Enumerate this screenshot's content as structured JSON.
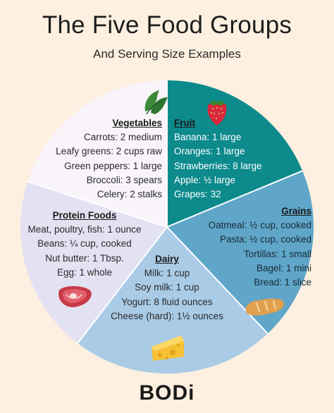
{
  "title": "The Five Food Groups",
  "subtitle": "And Serving Size Examples",
  "groups": {
    "vegetables": {
      "heading": "Vegetables",
      "color": "#f8f4fa",
      "items": [
        "Carrots: 2 medium",
        "Leafy greens: 2 cups raw",
        "Green peppers: 1 large",
        "Broccoli: 3 spears",
        "Celery: 2 stalks"
      ],
      "icon": "leafy-greens-icon"
    },
    "fruit": {
      "heading": "Fruit",
      "color": "#0d8a8c",
      "items": [
        "Banana: 1 large",
        "Oranges: 1 large",
        "Strawberries: 8 large",
        "Apple: ½ large",
        "Grapes: 32"
      ],
      "icon": "strawberry-icon"
    },
    "grains": {
      "heading": "Grains",
      "color": "#5fa6c9",
      "items": [
        "Oatmeal: ½ cup, cooked",
        "Pasta: ½ cup, cooked",
        "Tortillas: 1 small",
        "Bagel: 1 mini",
        "Bread: 1 slice"
      ],
      "icon": "bread-icon"
    },
    "dairy": {
      "heading": "Dairy",
      "color": "#a9cbe6",
      "items": [
        "Milk: 1 cup",
        "Soy milk: 1 cup",
        "Yogurt: 8 fluid ounces",
        "Cheese (hard): 1½ ounces"
      ],
      "icon": "cheese-icon"
    },
    "protein": {
      "heading": "Protein Foods",
      "color": "#e3e2f3",
      "items": [
        "Meat, poultry, fish: 1 ounce",
        "Beans: ¼ cup, cooked",
        "Nut butter: 1 Tbsp.",
        "Egg: 1 whole"
      ],
      "icon": "steak-icon"
    }
  },
  "logo": "BODi"
}
